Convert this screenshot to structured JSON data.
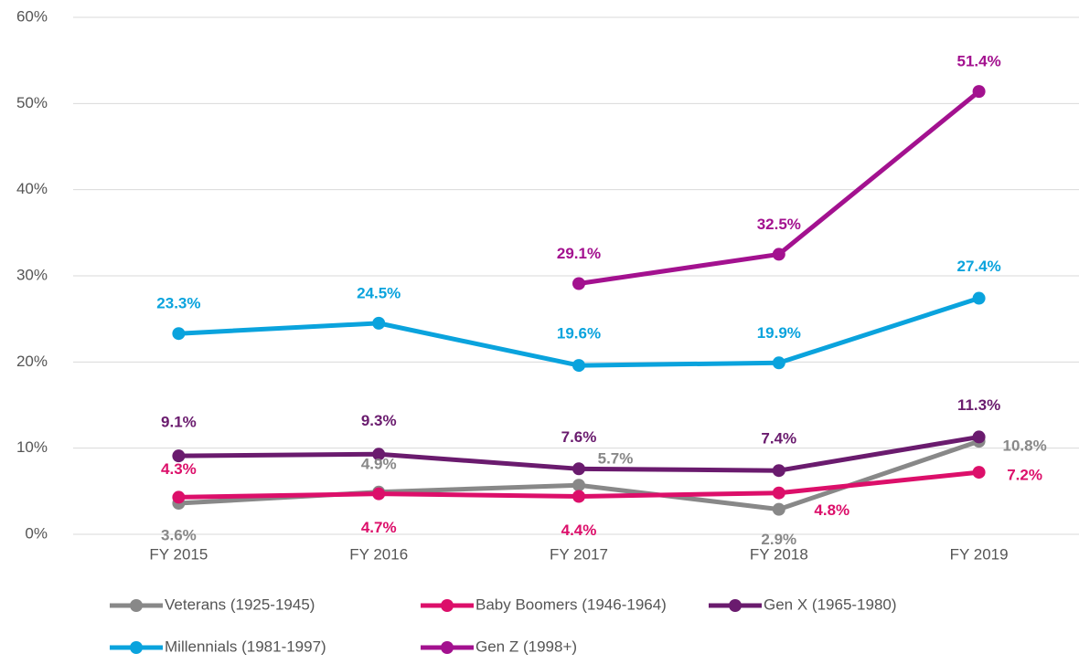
{
  "chart_data": {
    "type": "line",
    "categories": [
      "FY 2015",
      "FY 2016",
      "FY 2017",
      "FY 2018",
      "FY 2019"
    ],
    "series": [
      {
        "name": "Veterans (1925-1945)",
        "color": "#888888",
        "values": [
          3.6,
          4.9,
          5.7,
          2.9,
          10.8
        ],
        "value_labels": [
          "3.6%",
          "4.9%",
          "5.7%",
          "2.9%",
          "10.8%"
        ]
      },
      {
        "name": "Baby Boomers (1946-1964)",
        "color": "#dc0f6a",
        "values": [
          4.3,
          4.7,
          4.4,
          4.8,
          7.2
        ],
        "value_labels": [
          "4.3%",
          "4.7%",
          "4.4%",
          "4.8%",
          "7.2%"
        ]
      },
      {
        "name": "Gen X (1965-1980)",
        "color": "#6a1b6e",
        "values": [
          9.1,
          9.3,
          7.6,
          7.4,
          11.3
        ],
        "value_labels": [
          "9.1%",
          "9.3%",
          "7.6%",
          "7.4%",
          "11.3%"
        ]
      },
      {
        "name": "Millennials (1981-1997)",
        "color": "#0aa3dd",
        "values": [
          23.3,
          24.5,
          19.6,
          19.9,
          27.4
        ],
        "value_labels": [
          "23.3%",
          "24.5%",
          "19.6%",
          "19.9%",
          "27.4%"
        ]
      },
      {
        "name": "Gen Z (1998+)",
        "color": "#a3118f",
        "values": [
          null,
          null,
          29.1,
          32.5,
          51.4
        ],
        "value_labels": [
          null,
          null,
          "29.1%",
          "32.5%",
          "51.4%"
        ]
      }
    ],
    "ylim": [
      0,
      60
    ],
    "yticks": [
      {
        "value": 0,
        "label": "0%"
      },
      {
        "value": 10,
        "label": "10%"
      },
      {
        "value": 20,
        "label": "20%"
      },
      {
        "value": 30,
        "label": "30%"
      },
      {
        "value": 40,
        "label": "40%"
      },
      {
        "value": 50,
        "label": "50%"
      },
      {
        "value": 60,
        "label": "60%"
      }
    ],
    "grid": true
  }
}
